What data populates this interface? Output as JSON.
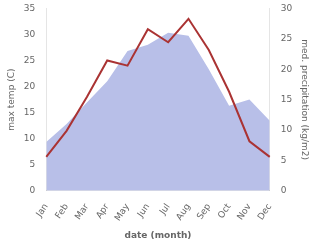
{
  "chart_data": {
    "type": "line",
    "categories": [
      "Jan",
      "Feb",
      "Mar",
      "Apr",
      "May",
      "Jun",
      "Jul",
      "Aug",
      "Sep",
      "Oct",
      "Nov",
      "Dec"
    ],
    "series": [
      {
        "type": "area",
        "color": "#b8bfe8",
        "axis": "y2",
        "values": [
          8.0,
          11.0,
          14.5,
          18.0,
          23.0,
          24.0,
          26.0,
          25.5,
          20.0,
          14.0,
          15.0,
          11.5
        ]
      },
      {
        "type": "line",
        "color": "#aa3333",
        "values": [
          6.5,
          11.5,
          18.0,
          25.0,
          24.0,
          31.0,
          28.5,
          33.0,
          27.0,
          19.0,
          9.5,
          6.5
        ]
      }
    ],
    "xlabel": "date (month)",
    "ylabel": "max temp (C)",
    "y2label": "med. precipitation (kg/m2)",
    "ylim": [
      0,
      35
    ],
    "yticks": [
      0,
      5,
      10,
      15,
      20,
      25,
      30,
      35
    ],
    "y2lim": [
      0,
      30
    ],
    "y2ticks": [
      0,
      5,
      10,
      15,
      20,
      25,
      30
    ],
    "grid": false
  }
}
